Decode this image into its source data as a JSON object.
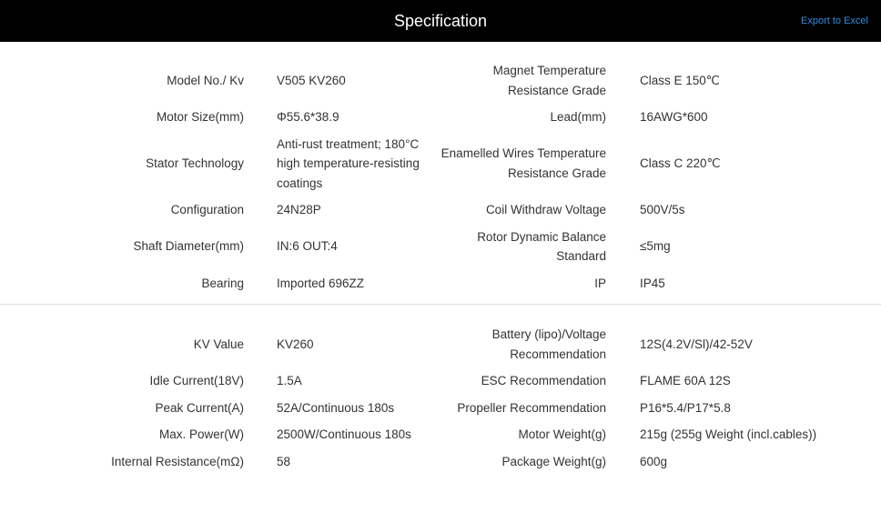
{
  "header": {
    "title": "Specification",
    "export_label": "Export to Excel"
  },
  "sections": [
    {
      "rows": [
        {
          "label1": "Model No./ Kv",
          "value1": "V505 KV260",
          "label2": "Magnet Temperature Resistance Grade",
          "value2": "Class E 150℃"
        },
        {
          "label1": "Motor Size(mm)",
          "value1": "Φ55.6*38.9",
          "label2": "Lead(mm)",
          "value2": "16AWG*600"
        },
        {
          "label1": "Stator Technology",
          "value1": "Anti-rust treatment; 180°C high temperature-resisting coatings",
          "label2": "Enamelled Wires Temperature Resistance Grade",
          "value2": "Class C 220℃"
        },
        {
          "label1": "Configuration",
          "value1": "24N28P",
          "label2": "Coil Withdraw Voltage",
          "value2": "500V/5s"
        },
        {
          "label1": "Shaft Diameter(mm)",
          "value1": "IN:6 OUT:4",
          "label2": "Rotor Dynamic Balance Standard",
          "value2": "≤5mg"
        },
        {
          "label1": "Bearing",
          "value1": "Imported 696ZZ",
          "label2": "IP",
          "value2": "IP45"
        }
      ]
    },
    {
      "rows": [
        {
          "label1": "KV Value",
          "value1": "KV260",
          "label2": "Battery (lipo)/Voltage Recommendation",
          "value2": "12S(4.2V/Sl)/42-52V"
        },
        {
          "label1": "Idle Current(18V)",
          "value1": "1.5A",
          "label2": "ESC Recommendation",
          "value2": "FLAME 60A 12S"
        },
        {
          "label1": "Peak Current(A)",
          "value1": "52A/Continuous 180s",
          "label2": "Propeller Recommendation",
          "value2": "P16*5.4/P17*5.8"
        },
        {
          "label1": "Max. Power(W)",
          "value1": "2500W/Continuous 180s",
          "label2": "Motor Weight(g)",
          "value2": "215g (255g Weight (incl.cables))"
        },
        {
          "label1": "Internal Resistance(mΩ)",
          "value1": "58",
          "label2": "Package Weight(g)",
          "value2": "600g"
        }
      ]
    }
  ]
}
